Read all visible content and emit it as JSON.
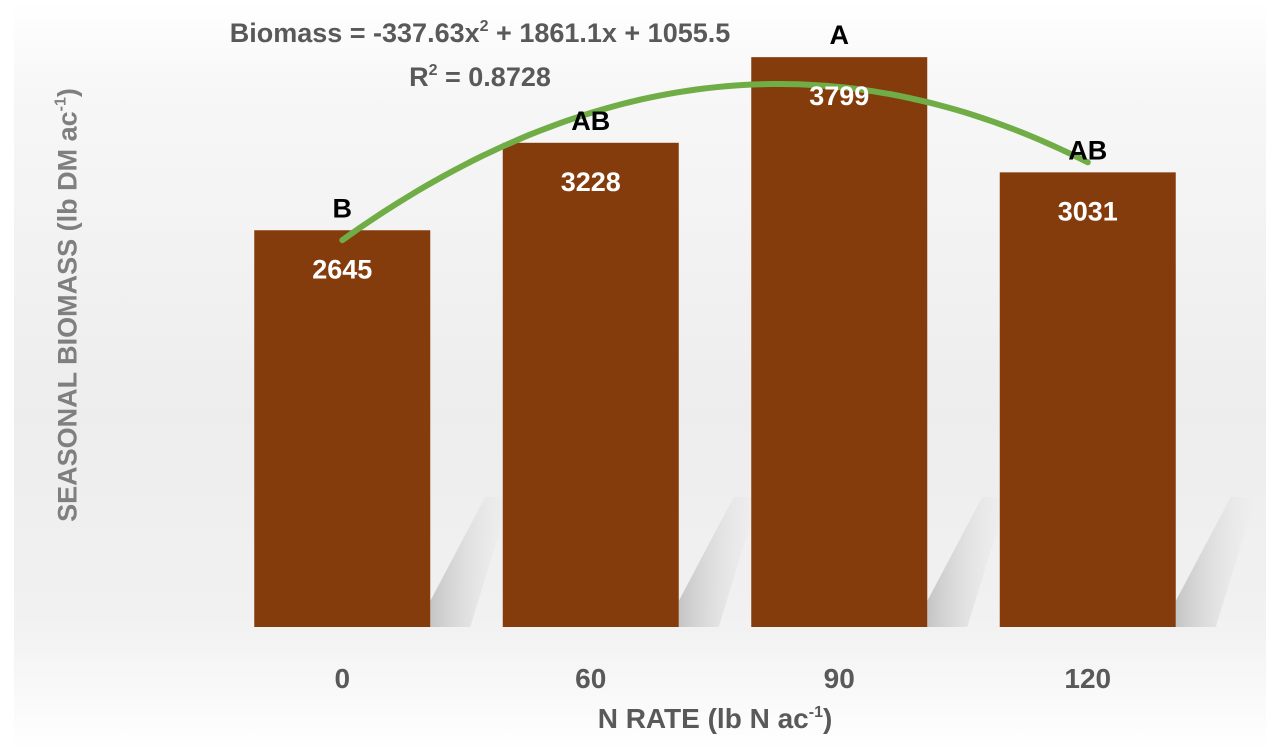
{
  "chart_data": {
    "type": "bar",
    "categories": [
      "0",
      "60",
      "90",
      "120"
    ],
    "values": [
      2645,
      3228,
      3799,
      3031
    ],
    "value_labels": [
      "2645",
      "3228",
      "3799",
      "3031"
    ],
    "significance_letters": [
      "B",
      "AB",
      "A",
      "AB"
    ],
    "xlabel_main": "N RATE (lb N ac",
    "xlabel_sup": "-1",
    "xlabel_close": ")",
    "ylabel_main": "SEASONAL BIOMASS (lb DM ac",
    "ylabel_sup": "-1",
    "ylabel_close": ")",
    "ylim": [
      0,
      4000
    ],
    "trendline": {
      "type": "polynomial",
      "order": 2,
      "coefficients": [
        -337.63,
        1861.1,
        1055.5
      ],
      "x_index": [
        1,
        2,
        3,
        4
      ],
      "equation_parts": [
        "Biomass = -337.63x",
        "2",
        " + 1861.1x + 1055.5"
      ],
      "r2_parts": [
        "R",
        "2",
        " = 0.8728"
      ]
    },
    "colors": {
      "bar": "#843C0C",
      "trendline": "#70AD47",
      "value_label": "#FFFFFF",
      "letter_label": "#000000",
      "axis_text": "#595959"
    },
    "grid": false,
    "legend": "none"
  }
}
